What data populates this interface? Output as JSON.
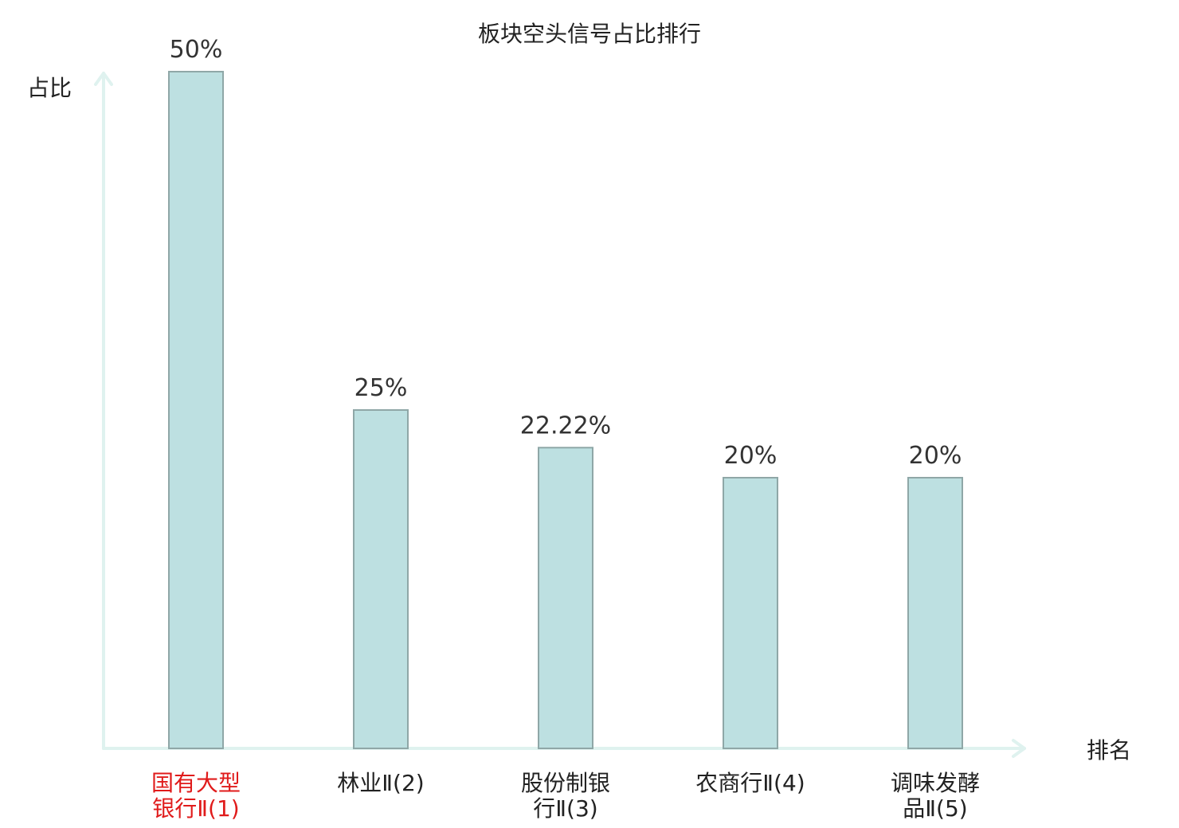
{
  "chart_data": {
    "type": "bar",
    "title": "板块空头信号占比排行",
    "ylabel": "占比",
    "xlabel": "排名",
    "ylim": [
      0,
      50
    ],
    "grid": false,
    "categories": [
      [
        "国有大型",
        "银行Ⅱ(1)"
      ],
      [
        "林业Ⅱ(2)"
      ],
      [
        "股份制银",
        "行Ⅱ(3)"
      ],
      [
        "农商行Ⅱ(4)"
      ],
      [
        "调味发酵",
        "品Ⅱ(5)"
      ]
    ],
    "values": [
      50,
      25,
      22.22,
      20,
      20
    ],
    "value_labels": [
      "50%",
      "25%",
      "22.22%",
      "20%",
      "20%"
    ],
    "highlight_index": 0,
    "colors": {
      "bar_fill": "#bde0e1",
      "bar_stroke": "#8fa7a7",
      "axis": "#dff2ef",
      "highlight_text": "#e01b1b",
      "text": "#222222",
      "value_text": "#333333"
    }
  }
}
